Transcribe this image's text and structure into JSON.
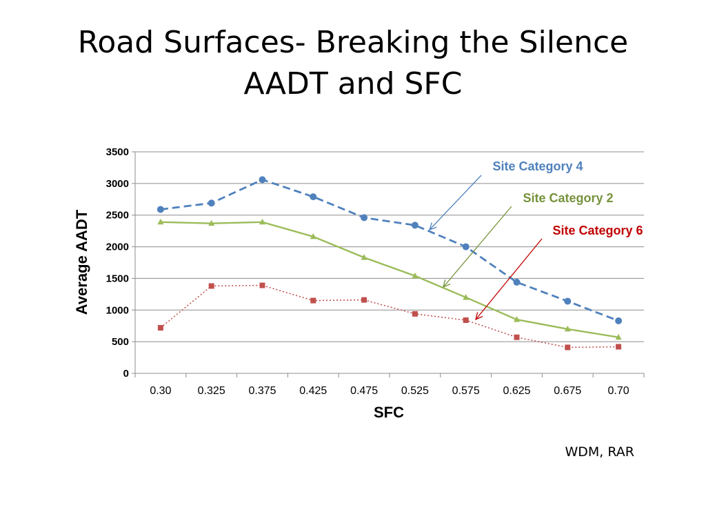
{
  "slide": {
    "title_line1": "Road Surfaces- Breaking the Silence",
    "title_line2": "AADT and SFC",
    "credit": "WDM, RAR"
  },
  "chart_data": {
    "type": "line",
    "title": "",
    "xlabel": "SFC",
    "ylabel": "Average AADT",
    "categories": [
      "0.30",
      "0.325",
      "0.375",
      "0.425",
      "0.475",
      "0.525",
      "0.575",
      "0.625",
      "0.675",
      "0.70"
    ],
    "ylim": [
      0,
      3500
    ],
    "yticks": [
      0,
      500,
      1000,
      1500,
      2000,
      2500,
      3000,
      3500
    ],
    "grid": true,
    "series": [
      {
        "name": "Site Category 4",
        "values": [
          2590,
          2690,
          3060,
          2790,
          2460,
          2340,
          2000,
          1440,
          1140,
          830
        ],
        "color": "#4F81BD",
        "line": "dashed",
        "marker": "circle"
      },
      {
        "name": "Site Category 2",
        "values": [
          2390,
          2370,
          2390,
          2160,
          1830,
          1540,
          1200,
          850,
          700,
          570
        ],
        "color": "#9BBB59",
        "line": "solid",
        "marker": "triangle"
      },
      {
        "name": "Site Category 6",
        "values": [
          720,
          1380,
          1390,
          1150,
          1160,
          940,
          840,
          570,
          410,
          420
        ],
        "color": "#C0504D",
        "line": "dotted",
        "marker": "square"
      }
    ],
    "annotations": [
      {
        "text": "Site Category 4",
        "color": "#4F81BD"
      },
      {
        "text": "Site Category 2",
        "color": "#76923C"
      },
      {
        "text": "Site Category 6",
        "color": "#C00000"
      }
    ]
  }
}
